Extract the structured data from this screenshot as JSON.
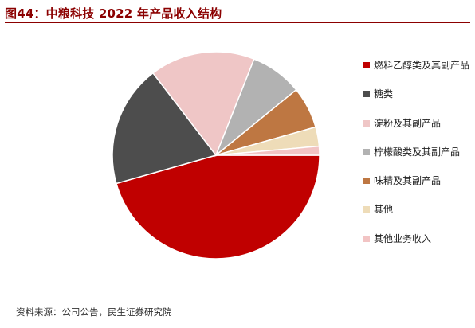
{
  "header": {
    "title": "图44：中粮科技 2022 年产品收入结构"
  },
  "footer": {
    "source": "资料来源：公司公告，民生证券研究院"
  },
  "chart_data": {
    "type": "pie",
    "title": "图44：中粮科技 2022 年产品收入结构",
    "start_angle_deg": 0,
    "direction": "clockwise",
    "legend_position": "right",
    "series": [
      {
        "name": "燃料乙醇类及其副产品",
        "value": 45.6,
        "color": "#c00000"
      },
      {
        "name": "糖类",
        "value": 19.0,
        "color": "#4d4d4d"
      },
      {
        "name": "淀粉及其副产品",
        "value": 16.4,
        "color": "#efc6c6"
      },
      {
        "name": "柠檬酸类及其副产品",
        "value": 8.1,
        "color": "#b2b2b2"
      },
      {
        "name": "味精及其副产品",
        "value": 6.5,
        "color": "#be7742"
      },
      {
        "name": "其他",
        "value": 3.0,
        "color": "#eedcb8"
      },
      {
        "name": "其他业务收入",
        "value": 1.4,
        "color": "#f2c4c4"
      }
    ]
  }
}
